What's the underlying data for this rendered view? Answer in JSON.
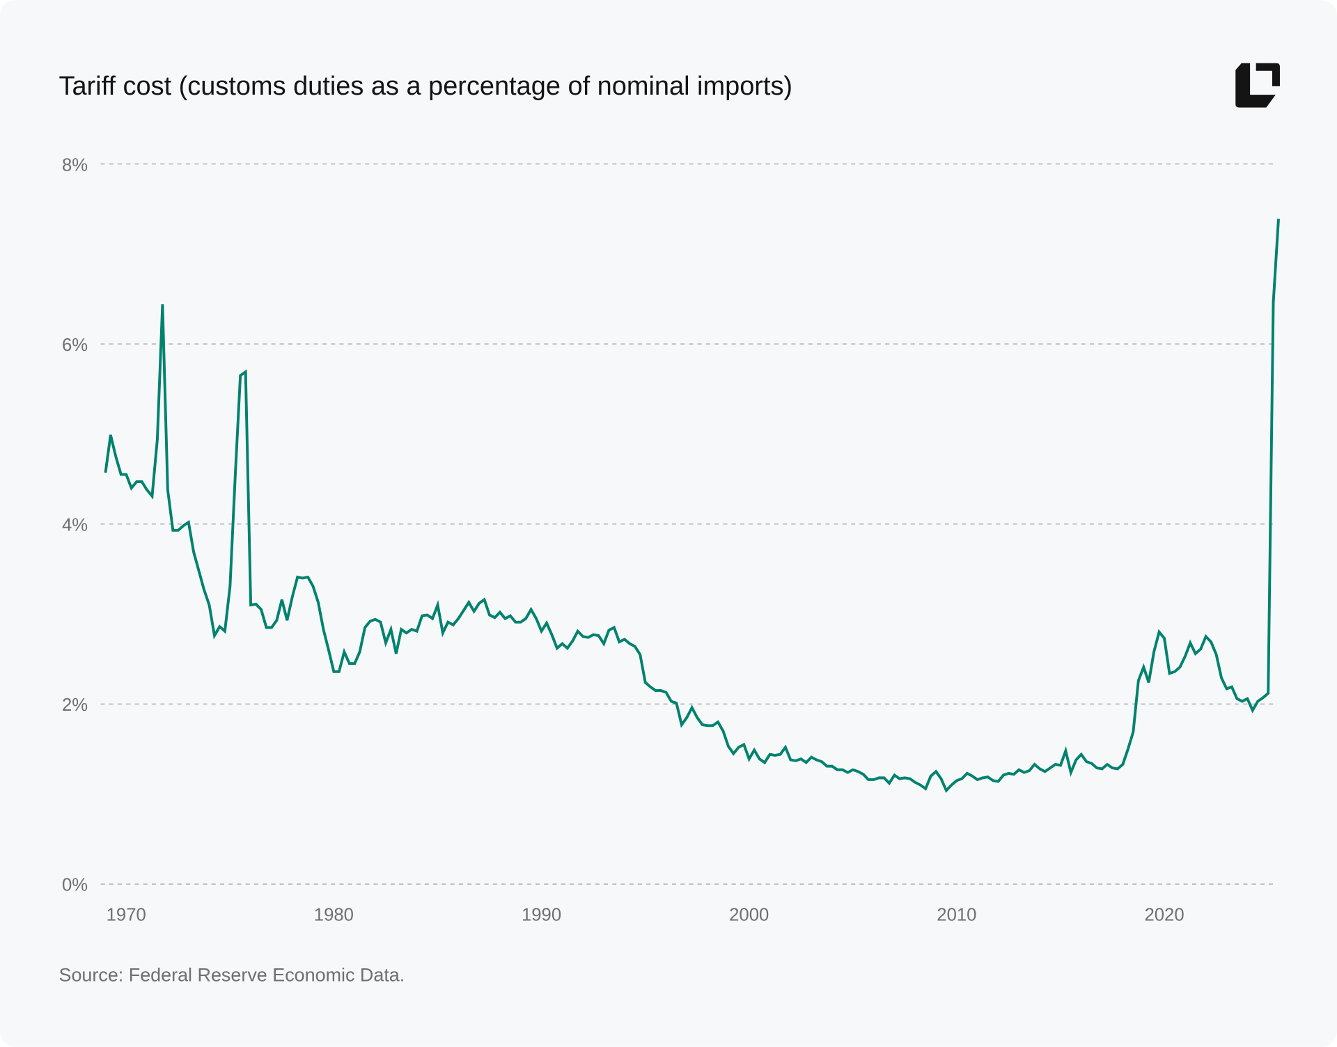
{
  "title": "Tariff cost (customs duties as a percentage of nominal imports)",
  "source": "Source: Federal Reserve Economic Data.",
  "logo": "brand-logo",
  "colors": {
    "line": "#00826e",
    "background": "#f7f8fa",
    "grid": "#b9bbbe"
  },
  "chart_data": {
    "type": "line",
    "title": "Tariff cost (customs duties as a percentage of nominal imports)",
    "xlabel": "",
    "ylabel": "",
    "xlim": [
      1968.9,
      2025.6
    ],
    "ylim": [
      0,
      8
    ],
    "grid": true,
    "grid_style": "dashed horizontal",
    "x_ticks": [
      1970,
      1980,
      1990,
      2000,
      2010,
      2020
    ],
    "x_tick_labels": [
      "1970",
      "1980",
      "1990",
      "2000",
      "2010",
      "2020"
    ],
    "y_ticks": [
      0,
      2,
      4,
      6,
      8
    ],
    "y_tick_labels": [
      "0%",
      "2%",
      "4%",
      "6%",
      "8%"
    ],
    "series": [
      {
        "color": "#00826e",
        "points": [
          [
            1969.0,
            4.57
          ],
          [
            1969.25,
            4.99
          ],
          [
            1969.5,
            4.75
          ],
          [
            1969.75,
            4.55
          ],
          [
            1970.0,
            4.55
          ],
          [
            1970.25,
            4.4
          ],
          [
            1970.5,
            4.47
          ],
          [
            1970.75,
            4.47
          ],
          [
            1971.0,
            4.38
          ],
          [
            1971.25,
            4.31
          ],
          [
            1971.5,
            4.94
          ],
          [
            1971.75,
            6.44
          ],
          [
            1972.0,
            4.38
          ],
          [
            1972.25,
            3.93
          ],
          [
            1972.5,
            3.93
          ],
          [
            1972.75,
            3.98
          ],
          [
            1973.0,
            4.02
          ],
          [
            1973.25,
            3.69
          ],
          [
            1973.5,
            3.48
          ],
          [
            1973.75,
            3.27
          ],
          [
            1974.0,
            3.1
          ],
          [
            1974.25,
            2.76
          ],
          [
            1974.5,
            2.86
          ],
          [
            1974.75,
            2.81
          ],
          [
            1975.0,
            3.31
          ],
          [
            1975.25,
            4.52
          ],
          [
            1975.5,
            5.65
          ],
          [
            1975.75,
            5.69
          ],
          [
            1976.0,
            3.1
          ],
          [
            1976.25,
            3.11
          ],
          [
            1976.5,
            3.05
          ],
          [
            1976.75,
            2.85
          ],
          [
            1977.0,
            2.85
          ],
          [
            1977.25,
            2.93
          ],
          [
            1977.5,
            3.16
          ],
          [
            1977.75,
            2.93
          ],
          [
            1978.0,
            3.19
          ],
          [
            1978.25,
            3.41
          ],
          [
            1978.5,
            3.4
          ],
          [
            1978.75,
            3.41
          ],
          [
            1979.0,
            3.31
          ],
          [
            1979.25,
            3.13
          ],
          [
            1979.5,
            2.83
          ],
          [
            1979.75,
            2.6
          ],
          [
            1980.0,
            2.36
          ],
          [
            1980.25,
            2.36
          ],
          [
            1980.5,
            2.58
          ],
          [
            1980.75,
            2.45
          ],
          [
            1981.0,
            2.45
          ],
          [
            1981.25,
            2.58
          ],
          [
            1981.5,
            2.85
          ],
          [
            1981.75,
            2.92
          ],
          [
            1982.0,
            2.94
          ],
          [
            1982.25,
            2.91
          ],
          [
            1982.5,
            2.68
          ],
          [
            1982.75,
            2.83
          ],
          [
            1983.0,
            2.56
          ],
          [
            1983.25,
            2.83
          ],
          [
            1983.5,
            2.79
          ],
          [
            1983.75,
            2.83
          ],
          [
            1984.0,
            2.81
          ],
          [
            1984.25,
            2.98
          ],
          [
            1984.5,
            2.99
          ],
          [
            1984.75,
            2.95
          ],
          [
            1985.0,
            3.1
          ],
          [
            1985.25,
            2.79
          ],
          [
            1985.5,
            2.91
          ],
          [
            1985.75,
            2.88
          ],
          [
            1986.0,
            2.95
          ],
          [
            1986.25,
            3.04
          ],
          [
            1986.5,
            3.13
          ],
          [
            1986.75,
            3.03
          ],
          [
            1987.0,
            3.12
          ],
          [
            1987.25,
            3.16
          ],
          [
            1987.5,
            2.99
          ],
          [
            1987.75,
            2.96
          ],
          [
            1988.0,
            3.02
          ],
          [
            1988.25,
            2.95
          ],
          [
            1988.5,
            2.98
          ],
          [
            1988.75,
            2.91
          ],
          [
            1989.0,
            2.91
          ],
          [
            1989.25,
            2.95
          ],
          [
            1989.5,
            3.05
          ],
          [
            1989.75,
            2.95
          ],
          [
            1990.0,
            2.81
          ],
          [
            1990.25,
            2.9
          ],
          [
            1990.5,
            2.77
          ],
          [
            1990.75,
            2.62
          ],
          [
            1991.0,
            2.67
          ],
          [
            1991.25,
            2.62
          ],
          [
            1991.5,
            2.7
          ],
          [
            1991.75,
            2.81
          ],
          [
            1992.0,
            2.75
          ],
          [
            1992.25,
            2.74
          ],
          [
            1992.5,
            2.77
          ],
          [
            1992.75,
            2.76
          ],
          [
            1993.0,
            2.67
          ],
          [
            1993.25,
            2.82
          ],
          [
            1993.5,
            2.85
          ],
          [
            1993.75,
            2.69
          ],
          [
            1994.0,
            2.72
          ],
          [
            1994.25,
            2.67
          ],
          [
            1994.5,
            2.64
          ],
          [
            1994.75,
            2.55
          ],
          [
            1995.0,
            2.24
          ],
          [
            1995.25,
            2.19
          ],
          [
            1995.5,
            2.15
          ],
          [
            1995.75,
            2.15
          ],
          [
            1996.0,
            2.13
          ],
          [
            1996.25,
            2.03
          ],
          [
            1996.5,
            2.01
          ],
          [
            1996.75,
            1.77
          ],
          [
            1997.0,
            1.85
          ],
          [
            1997.25,
            1.96
          ],
          [
            1997.5,
            1.85
          ],
          [
            1997.75,
            1.77
          ],
          [
            1998.0,
            1.76
          ],
          [
            1998.25,
            1.76
          ],
          [
            1998.5,
            1.8
          ],
          [
            1998.75,
            1.7
          ],
          [
            1999.0,
            1.53
          ],
          [
            1999.25,
            1.45
          ],
          [
            1999.5,
            1.52
          ],
          [
            1999.75,
            1.55
          ],
          [
            2000.0,
            1.39
          ],
          [
            2000.25,
            1.49
          ],
          [
            2000.5,
            1.39
          ],
          [
            2000.75,
            1.35
          ],
          [
            2001.0,
            1.44
          ],
          [
            2001.25,
            1.43
          ],
          [
            2001.5,
            1.44
          ],
          [
            2001.75,
            1.52
          ],
          [
            2002.0,
            1.38
          ],
          [
            2002.25,
            1.37
          ],
          [
            2002.5,
            1.39
          ],
          [
            2002.75,
            1.35
          ],
          [
            2003.0,
            1.41
          ],
          [
            2003.25,
            1.38
          ],
          [
            2003.5,
            1.36
          ],
          [
            2003.75,
            1.31
          ],
          [
            2004.0,
            1.31
          ],
          [
            2004.25,
            1.27
          ],
          [
            2004.5,
            1.27
          ],
          [
            2004.75,
            1.24
          ],
          [
            2005.0,
            1.27
          ],
          [
            2005.25,
            1.25
          ],
          [
            2005.5,
            1.22
          ],
          [
            2005.75,
            1.16
          ],
          [
            2006.0,
            1.16
          ],
          [
            2006.25,
            1.18
          ],
          [
            2006.5,
            1.18
          ],
          [
            2006.75,
            1.12
          ],
          [
            2007.0,
            1.21
          ],
          [
            2007.25,
            1.17
          ],
          [
            2007.5,
            1.18
          ],
          [
            2007.75,
            1.17
          ],
          [
            2008.0,
            1.13
          ],
          [
            2008.25,
            1.1
          ],
          [
            2008.5,
            1.06
          ],
          [
            2008.75,
            1.2
          ],
          [
            2009.0,
            1.25
          ],
          [
            2009.25,
            1.17
          ],
          [
            2009.5,
            1.04
          ],
          [
            2009.75,
            1.1
          ],
          [
            2010.0,
            1.15
          ],
          [
            2010.25,
            1.17
          ],
          [
            2010.5,
            1.23
          ],
          [
            2010.75,
            1.2
          ],
          [
            2011.0,
            1.16
          ],
          [
            2011.25,
            1.18
          ],
          [
            2011.5,
            1.19
          ],
          [
            2011.75,
            1.15
          ],
          [
            2012.0,
            1.14
          ],
          [
            2012.25,
            1.21
          ],
          [
            2012.5,
            1.23
          ],
          [
            2012.75,
            1.22
          ],
          [
            2013.0,
            1.27
          ],
          [
            2013.25,
            1.24
          ],
          [
            2013.5,
            1.26
          ],
          [
            2013.75,
            1.33
          ],
          [
            2014.0,
            1.28
          ],
          [
            2014.25,
            1.25
          ],
          [
            2014.5,
            1.29
          ],
          [
            2014.75,
            1.33
          ],
          [
            2015.0,
            1.32
          ],
          [
            2015.25,
            1.48
          ],
          [
            2015.5,
            1.24
          ],
          [
            2015.75,
            1.38
          ],
          [
            2016.0,
            1.44
          ],
          [
            2016.25,
            1.36
          ],
          [
            2016.5,
            1.34
          ],
          [
            2016.75,
            1.29
          ],
          [
            2017.0,
            1.28
          ],
          [
            2017.25,
            1.33
          ],
          [
            2017.5,
            1.29
          ],
          [
            2017.75,
            1.28
          ],
          [
            2018.0,
            1.33
          ],
          [
            2018.25,
            1.5
          ],
          [
            2018.5,
            1.69
          ],
          [
            2018.75,
            2.26
          ],
          [
            2019.0,
            2.41
          ],
          [
            2019.25,
            2.24
          ],
          [
            2019.5,
            2.58
          ],
          [
            2019.75,
            2.8
          ],
          [
            2020.0,
            2.73
          ],
          [
            2020.25,
            2.34
          ],
          [
            2020.5,
            2.36
          ],
          [
            2020.75,
            2.41
          ],
          [
            2021.0,
            2.53
          ],
          [
            2021.25,
            2.68
          ],
          [
            2021.5,
            2.56
          ],
          [
            2021.75,
            2.61
          ],
          [
            2022.0,
            2.75
          ],
          [
            2022.25,
            2.69
          ],
          [
            2022.5,
            2.55
          ],
          [
            2022.75,
            2.29
          ],
          [
            2023.0,
            2.17
          ],
          [
            2023.25,
            2.19
          ],
          [
            2023.5,
            2.06
          ],
          [
            2023.75,
            2.03
          ],
          [
            2024.0,
            2.06
          ],
          [
            2024.25,
            1.93
          ],
          [
            2024.5,
            2.03
          ],
          [
            2024.75,
            2.07
          ],
          [
            2025.0,
            2.12
          ],
          [
            2025.25,
            6.46
          ],
          [
            2025.5,
            7.39
          ]
        ]
      }
    ]
  }
}
